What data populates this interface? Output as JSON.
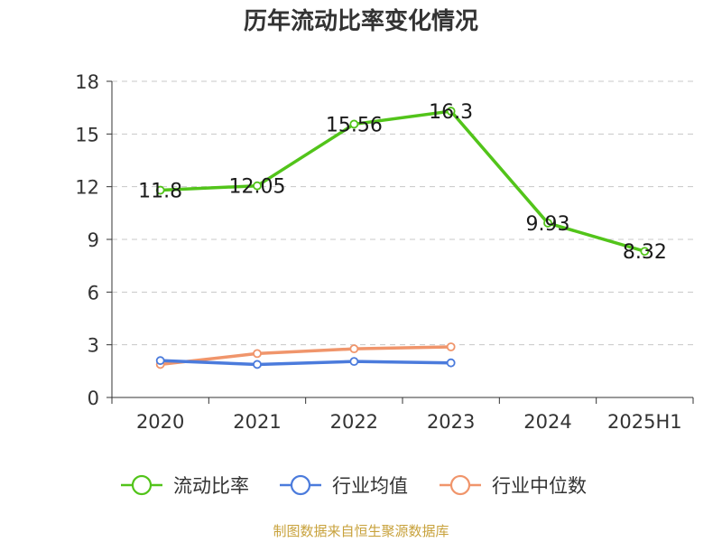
{
  "chart_data": {
    "type": "line",
    "title": "历年流动比率变化情况",
    "categories": [
      "2020",
      "2021",
      "2022",
      "2023",
      "2024",
      "2025H1"
    ],
    "yticks": [
      "0",
      "3",
      "6",
      "9",
      "12",
      "15",
      "18"
    ],
    "ylim": [
      0,
      18
    ],
    "grid": true,
    "legend_position": "bottom",
    "series": [
      {
        "name": "流动比率",
        "color": "#52c41a",
        "values": [
          11.8,
          12.05,
          15.56,
          16.3,
          9.93,
          8.32
        ],
        "labels": [
          "11.8",
          "12.05",
          "15.56",
          "16.3",
          "9.93",
          "8.32"
        ]
      },
      {
        "name": "行业均值",
        "color": "#4b7bdc",
        "values": [
          2.1,
          1.88,
          2.05,
          1.97,
          null,
          null
        ]
      },
      {
        "name": "行业中位数",
        "color": "#f0956b",
        "values": [
          1.88,
          2.5,
          2.77,
          2.88,
          null,
          null
        ]
      }
    ]
  },
  "source_note": "制图数据来自恒生聚源数据库"
}
